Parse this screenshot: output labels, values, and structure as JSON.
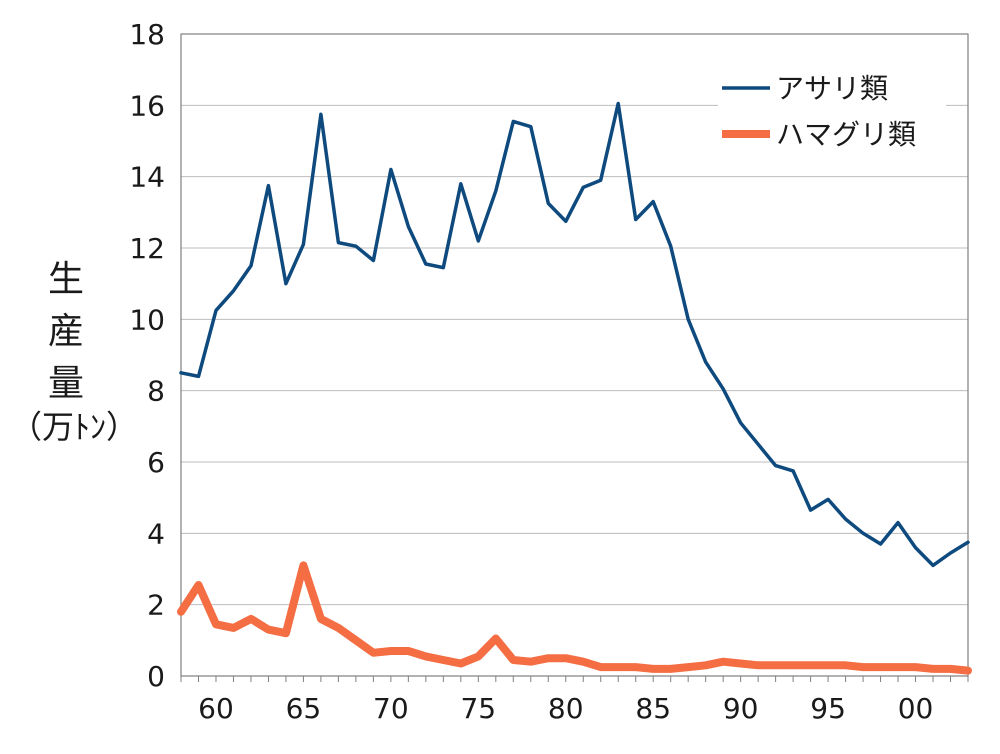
{
  "chart_data": {
    "type": "line",
    "ylabel_chars": [
      "生",
      "産",
      "量"
    ],
    "yunit_text": "（万ﾄﾝ）",
    "ylim": [
      0,
      18
    ],
    "yticks": [
      0,
      2,
      4,
      6,
      8,
      10,
      12,
      14,
      16,
      18
    ],
    "xlim": [
      1958,
      2003
    ],
    "xticks": [
      {
        "x": 1960,
        "label": "60"
      },
      {
        "x": 1965,
        "label": "65"
      },
      {
        "x": 1970,
        "label": "70"
      },
      {
        "x": 1975,
        "label": "75"
      },
      {
        "x": 1980,
        "label": "80"
      },
      {
        "x": 1985,
        "label": "85"
      },
      {
        "x": 1990,
        "label": "90"
      },
      {
        "x": 1995,
        "label": "95"
      },
      {
        "x": 2000,
        "label": "00"
      }
    ],
    "grid": true,
    "legend": "top-right",
    "x": [
      1958,
      1959,
      1960,
      1961,
      1962,
      1963,
      1964,
      1965,
      1966,
      1967,
      1968,
      1969,
      1970,
      1971,
      1972,
      1973,
      1974,
      1975,
      1976,
      1977,
      1978,
      1979,
      1980,
      1981,
      1982,
      1983,
      1984,
      1985,
      1986,
      1987,
      1988,
      1989,
      1990,
      1991,
      1992,
      1993,
      1994,
      1995,
      1996,
      1997,
      1998,
      1999,
      2000,
      2001,
      2002,
      2003
    ],
    "series": [
      {
        "name": "アサリ類",
        "color": "#0e4a7e",
        "values": [
          8.5,
          8.4,
          10.25,
          10.8,
          11.5,
          13.75,
          11.0,
          12.1,
          15.75,
          12.15,
          12.05,
          11.65,
          14.2,
          12.6,
          11.55,
          11.45,
          13.8,
          12.2,
          13.6,
          15.55,
          15.4,
          13.25,
          12.75,
          13.7,
          13.9,
          16.05,
          12.8,
          13.3,
          12.05,
          10.0,
          8.8,
          8.05,
          7.1,
          6.5,
          5.9,
          5.75,
          4.65,
          4.95,
          4.4,
          4.0,
          3.7,
          4.3,
          3.6,
          3.1,
          3.45,
          3.75
        ]
      },
      {
        "name": "ハマグリ類",
        "color": "#f46d43",
        "values": [
          1.8,
          2.55,
          1.45,
          1.35,
          1.6,
          1.3,
          1.2,
          3.1,
          1.6,
          1.35,
          1.0,
          0.65,
          0.7,
          0.7,
          0.55,
          0.45,
          0.35,
          0.55,
          1.05,
          0.45,
          0.4,
          0.5,
          0.5,
          0.4,
          0.25,
          0.25,
          0.25,
          0.2,
          0.2,
          0.25,
          0.3,
          0.4,
          0.35,
          0.3,
          0.3,
          0.3,
          0.3,
          0.3,
          0.3,
          0.25,
          0.25,
          0.25,
          0.25,
          0.2,
          0.2,
          0.15
        ]
      }
    ]
  }
}
